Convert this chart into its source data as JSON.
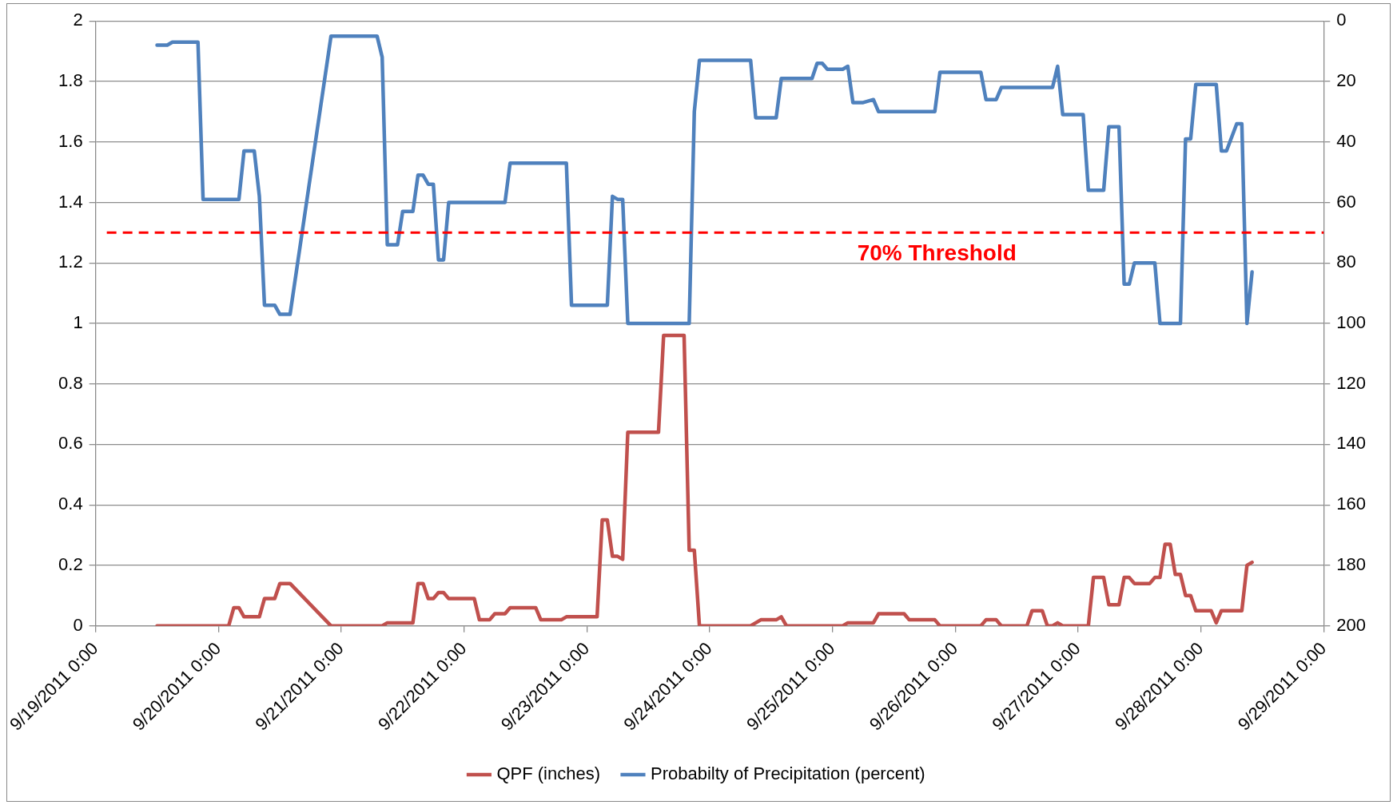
{
  "chart_data": {
    "type": "line",
    "xlim": [
      "2011-09-19T00:00",
      "2011-09-29T00:00"
    ],
    "xticks": [
      {
        "value": "2011-09-19T00:00",
        "label": "9/19/2011 0:00"
      },
      {
        "value": "2011-09-20T00:00",
        "label": "9/20/2011 0:00"
      },
      {
        "value": "2011-09-21T00:00",
        "label": "9/21/2011 0:00"
      },
      {
        "value": "2011-09-22T00:00",
        "label": "9/22/2011 0:00"
      },
      {
        "value": "2011-09-23T00:00",
        "label": "9/23/2011 0:00"
      },
      {
        "value": "2011-09-24T00:00",
        "label": "9/24/2011 0:00"
      },
      {
        "value": "2011-09-25T00:00",
        "label": "9/25/2011 0:00"
      },
      {
        "value": "2011-09-26T00:00",
        "label": "9/26/2011 0:00"
      },
      {
        "value": "2011-09-27T00:00",
        "label": "9/27/2011 0:00"
      },
      {
        "value": "2011-09-28T00:00",
        "label": "9/28/2011 0:00"
      },
      {
        "value": "2011-09-29T00:00",
        "label": "9/29/2011 0:00"
      }
    ],
    "ylim": [
      0,
      2
    ],
    "yticks": [
      0,
      0.2,
      0.4,
      0.6,
      0.8,
      1,
      1.2,
      1.4,
      1.6,
      1.8,
      2
    ],
    "y2lim": [
      200,
      0
    ],
    "y2ticks": [
      0,
      20,
      40,
      60,
      80,
      100,
      120,
      140,
      160,
      180,
      200
    ],
    "grid": "y",
    "legend": "bottom",
    "marker": "none",
    "line_style": "solid",
    "ref_lines": [
      {
        "axis": "y2",
        "value": 70,
        "label": "70% Threshold",
        "color": "#ff0000",
        "line_style": "dashed"
      }
    ],
    "series": [
      {
        "name": "QPF (inches)",
        "color": "#c0504d",
        "x": [
          "2011-09-19T12:00",
          "2011-09-20T02:00",
          "2011-09-20T03:00",
          "2011-09-20T04:00",
          "2011-09-20T05:00",
          "2011-09-20T08:00",
          "2011-09-20T09:00",
          "2011-09-20T11:00",
          "2011-09-20T12:00",
          "2011-09-20T14:00",
          "2011-09-20T22:00",
          "2011-09-21T08:00",
          "2011-09-21T09:00",
          "2011-09-21T14:00",
          "2011-09-21T15:00",
          "2011-09-21T16:00",
          "2011-09-21T17:00",
          "2011-09-21T18:00",
          "2011-09-21T19:00",
          "2011-09-21T20:00",
          "2011-09-21T21:00",
          "2011-09-22T02:00",
          "2011-09-22T03:00",
          "2011-09-22T05:00",
          "2011-09-22T06:00",
          "2011-09-22T08:00",
          "2011-09-22T09:00",
          "2011-09-22T14:00",
          "2011-09-22T15:00",
          "2011-09-22T19:00",
          "2011-09-22T20:00",
          "2011-09-23T02:00",
          "2011-09-23T03:00",
          "2011-09-23T04:00",
          "2011-09-23T05:00",
          "2011-09-23T06:00",
          "2011-09-23T07:00",
          "2011-09-23T08:00",
          "2011-09-23T14:00",
          "2011-09-23T15:00",
          "2011-09-23T19:00",
          "2011-09-23T20:00",
          "2011-09-23T21:00",
          "2011-09-23T22:00",
          "2011-09-24T08:00",
          "2011-09-24T10:00",
          "2011-09-24T13:00",
          "2011-09-24T14:00",
          "2011-09-24T15:00",
          "2011-09-25T02:00",
          "2011-09-25T03:00",
          "2011-09-25T08:00",
          "2011-09-25T09:00",
          "2011-09-25T14:00",
          "2011-09-25T15:00",
          "2011-09-25T20:00",
          "2011-09-25T21:00",
          "2011-09-26T05:00",
          "2011-09-26T06:00",
          "2011-09-26T08:00",
          "2011-09-26T09:00",
          "2011-09-26T14:00",
          "2011-09-26T15:00",
          "2011-09-26T17:00",
          "2011-09-26T18:00",
          "2011-09-26T19:00",
          "2011-09-26T20:00",
          "2011-09-26T21:00",
          "2011-09-27T02:00",
          "2011-09-27T03:00",
          "2011-09-27T05:00",
          "2011-09-27T06:00",
          "2011-09-27T08:00",
          "2011-09-27T09:00",
          "2011-09-27T10:00",
          "2011-09-27T11:00",
          "2011-09-27T14:00",
          "2011-09-27T15:00",
          "2011-09-27T16:00",
          "2011-09-27T17:00",
          "2011-09-27T18:00",
          "2011-09-27T19:00",
          "2011-09-27T20:00",
          "2011-09-27T21:00",
          "2011-09-27T22:00",
          "2011-09-27T23:00",
          "2011-09-28T02:00",
          "2011-09-28T03:00",
          "2011-09-28T04:00",
          "2011-09-28T08:00",
          "2011-09-28T09:00",
          "2011-09-28T10:00"
        ],
        "values": [
          0,
          0,
          0.06,
          0.06,
          0.03,
          0.03,
          0.09,
          0.09,
          0.14,
          0.14,
          0,
          0,
          0.01,
          0.01,
          0.14,
          0.14,
          0.09,
          0.09,
          0.11,
          0.11,
          0.09,
          0.09,
          0.02,
          0.02,
          0.04,
          0.04,
          0.06,
          0.06,
          0.02,
          0.02,
          0.03,
          0.03,
          0.35,
          0.35,
          0.23,
          0.23,
          0.22,
          0.64,
          0.64,
          0.96,
          0.96,
          0.25,
          0.25,
          0,
          0,
          0.02,
          0.02,
          0.03,
          0,
          0,
          0.01,
          0.01,
          0.04,
          0.04,
          0.02,
          0.02,
          0,
          0,
          0.02,
          0.02,
          0,
          0,
          0.05,
          0.05,
          0,
          0,
          0.01,
          0,
          0,
          0.16,
          0.16,
          0.07,
          0.07,
          0.16,
          0.16,
          0.14,
          0.14,
          0.16,
          0.16,
          0.27,
          0.27,
          0.17,
          0.17,
          0.1,
          0.1,
          0.05,
          0.05,
          0.01,
          0.05,
          0.05,
          0.2,
          0.21
        ]
      },
      {
        "name": "Probabilty of Precipitation (percent)",
        "color": "#4f81bd",
        "axis": "y2",
        "x": [
          "2011-09-19T12:00",
          "2011-09-19T14:00",
          "2011-09-19T15:00",
          "2011-09-19T20:00",
          "2011-09-19T21:00",
          "2011-09-20T04:00",
          "2011-09-20T05:00",
          "2011-09-20T07:00",
          "2011-09-20T08:00",
          "2011-09-20T09:00",
          "2011-09-20T11:00",
          "2011-09-20T12:00",
          "2011-09-20T14:00",
          "2011-09-20T22:00",
          "2011-09-21T07:00",
          "2011-09-21T08:00",
          "2011-09-21T09:00",
          "2011-09-21T11:00",
          "2011-09-21T12:00",
          "2011-09-21T14:00",
          "2011-09-21T15:00",
          "2011-09-21T16:00",
          "2011-09-21T17:00",
          "2011-09-21T18:00",
          "2011-09-21T19:00",
          "2011-09-21T20:00",
          "2011-09-21T21:00",
          "2011-09-22T08:00",
          "2011-09-22T09:00",
          "2011-09-22T20:00",
          "2011-09-22T21:00",
          "2011-09-23T04:00",
          "2011-09-23T05:00",
          "2011-09-23T06:00",
          "2011-09-23T07:00",
          "2011-09-23T08:00",
          "2011-09-23T20:00",
          "2011-09-23T21:00",
          "2011-09-23T22:00",
          "2011-09-24T08:00",
          "2011-09-24T09:00",
          "2011-09-24T13:00",
          "2011-09-24T14:00",
          "2011-09-24T20:00",
          "2011-09-24T21:00",
          "2011-09-24T22:00",
          "2011-09-24T23:00",
          "2011-09-25T02:00",
          "2011-09-25T03:00",
          "2011-09-25T04:00",
          "2011-09-25T06:00",
          "2011-09-25T08:00",
          "2011-09-25T09:00",
          "2011-09-25T20:00",
          "2011-09-25T21:00",
          "2011-09-26T05:00",
          "2011-09-26T06:00",
          "2011-09-26T08:00",
          "2011-09-26T09:00",
          "2011-09-26T19:00",
          "2011-09-26T20:00",
          "2011-09-26T21:00",
          "2011-09-27T01:00",
          "2011-09-27T02:00",
          "2011-09-27T05:00",
          "2011-09-27T06:00",
          "2011-09-27T08:00",
          "2011-09-27T09:00",
          "2011-09-27T10:00",
          "2011-09-27T11:00",
          "2011-09-27T15:00",
          "2011-09-27T16:00",
          "2011-09-27T20:00",
          "2011-09-27T21:00",
          "2011-09-27T22:00",
          "2011-09-27T23:00",
          "2011-09-28T03:00",
          "2011-09-28T04:00",
          "2011-09-28T05:00",
          "2011-09-28T07:00",
          "2011-09-28T08:00",
          "2011-09-28T09:00",
          "2011-09-28T10:00"
        ],
        "values": [
          8,
          8,
          7,
          7,
          59,
          59,
          43,
          43,
          58,
          94,
          94,
          97,
          97,
          5,
          5,
          12,
          74,
          74,
          63,
          63,
          51,
          51,
          54,
          54,
          79,
          79,
          60,
          60,
          47,
          47,
          94,
          94,
          58,
          59,
          59,
          100,
          100,
          30,
          13,
          13,
          32,
          32,
          19,
          19,
          14,
          14,
          16,
          16,
          15,
          27,
          27,
          26,
          30,
          30,
          17,
          17,
          26,
          26,
          22,
          22,
          15,
          31,
          31,
          56,
          56,
          35,
          35,
          87,
          87,
          80,
          80,
          100,
          100,
          39,
          39,
          21,
          21,
          43,
          43,
          34,
          34,
          100,
          83
        ]
      }
    ]
  }
}
